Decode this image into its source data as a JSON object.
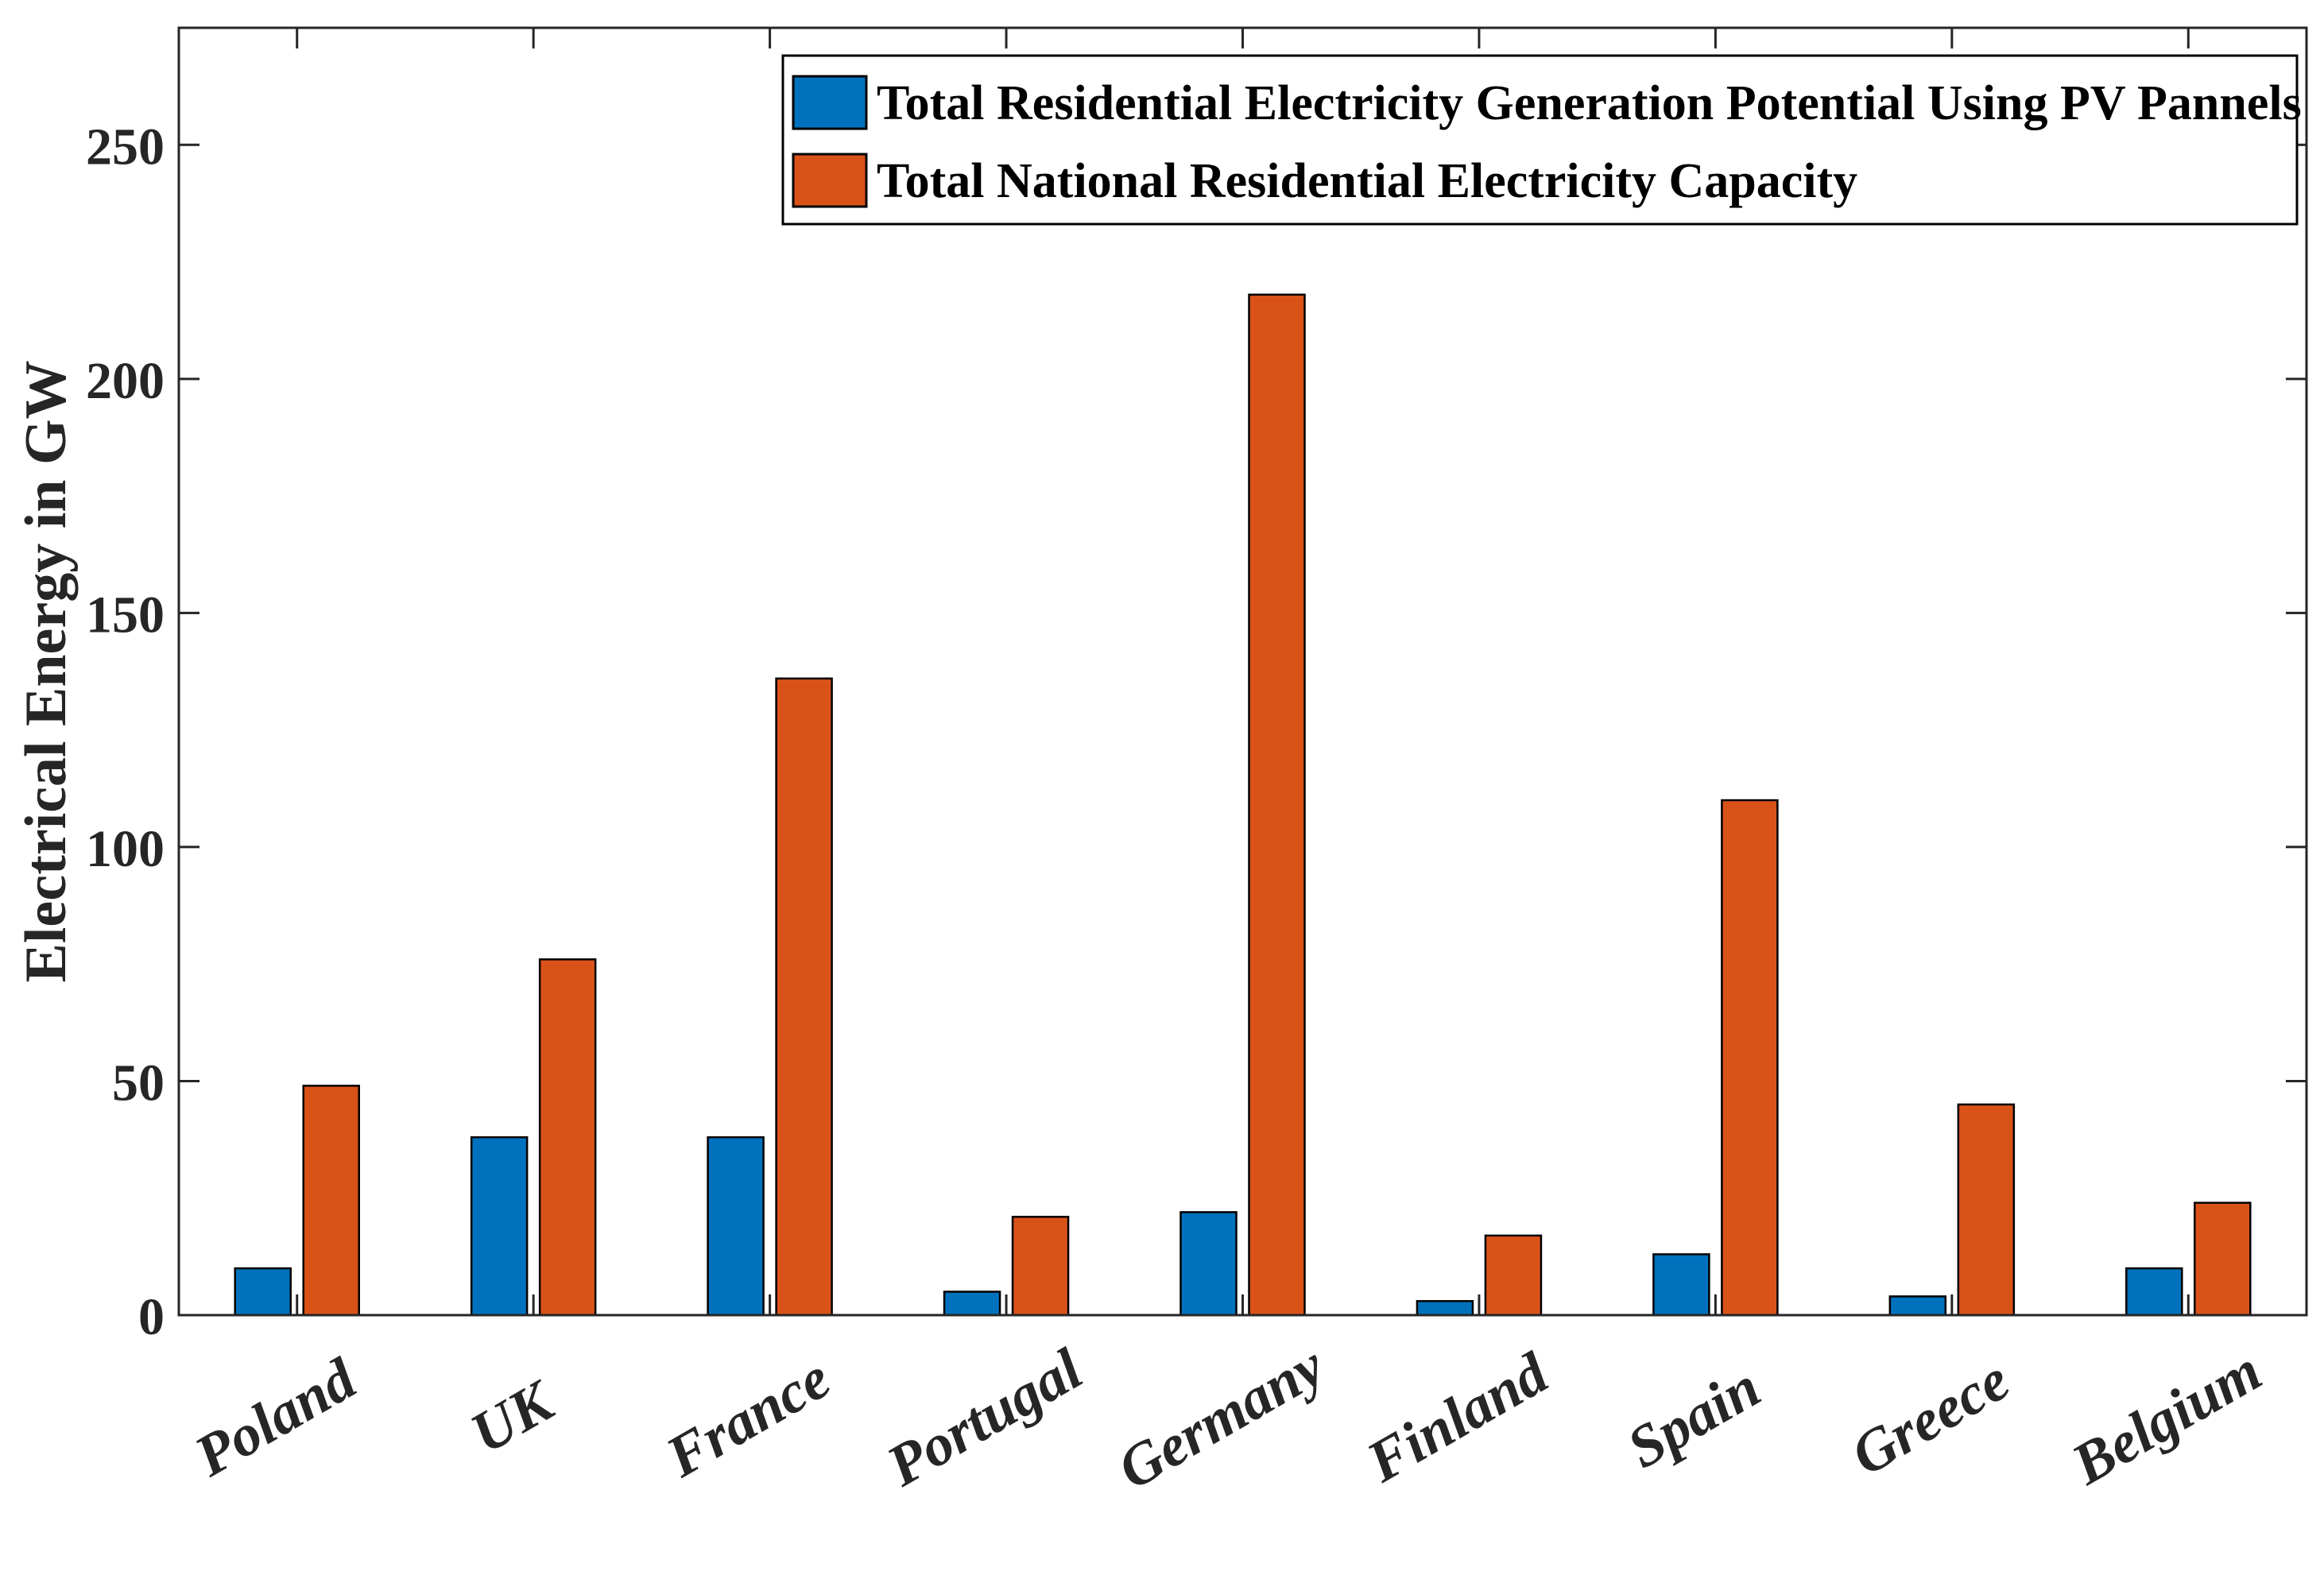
{
  "chart_data": {
    "type": "bar",
    "title": "",
    "xlabel": "",
    "ylabel": "Electrical Energy in GW",
    "ylim": [
      0,
      275
    ],
    "yticks": [
      0,
      50,
      100,
      150,
      200,
      250
    ],
    "grid": false,
    "legend_position": "top-right",
    "categories": [
      "Poland",
      "UK",
      "France",
      "Portugal",
      "Germany",
      "Finland",
      "Spain",
      "Greece",
      "Belgium"
    ],
    "series": [
      {
        "name": "Total Residential Electricity Generation Potential Using PV Pannels",
        "color": "#0072BD",
        "values": [
          10,
          38,
          38,
          5,
          22,
          3,
          13,
          4,
          10
        ]
      },
      {
        "name": "Total National Residential Electricity Capacity",
        "color": "#D95319",
        "values": [
          49,
          76,
          136,
          21,
          218,
          17,
          110,
          45,
          24
        ]
      }
    ]
  }
}
